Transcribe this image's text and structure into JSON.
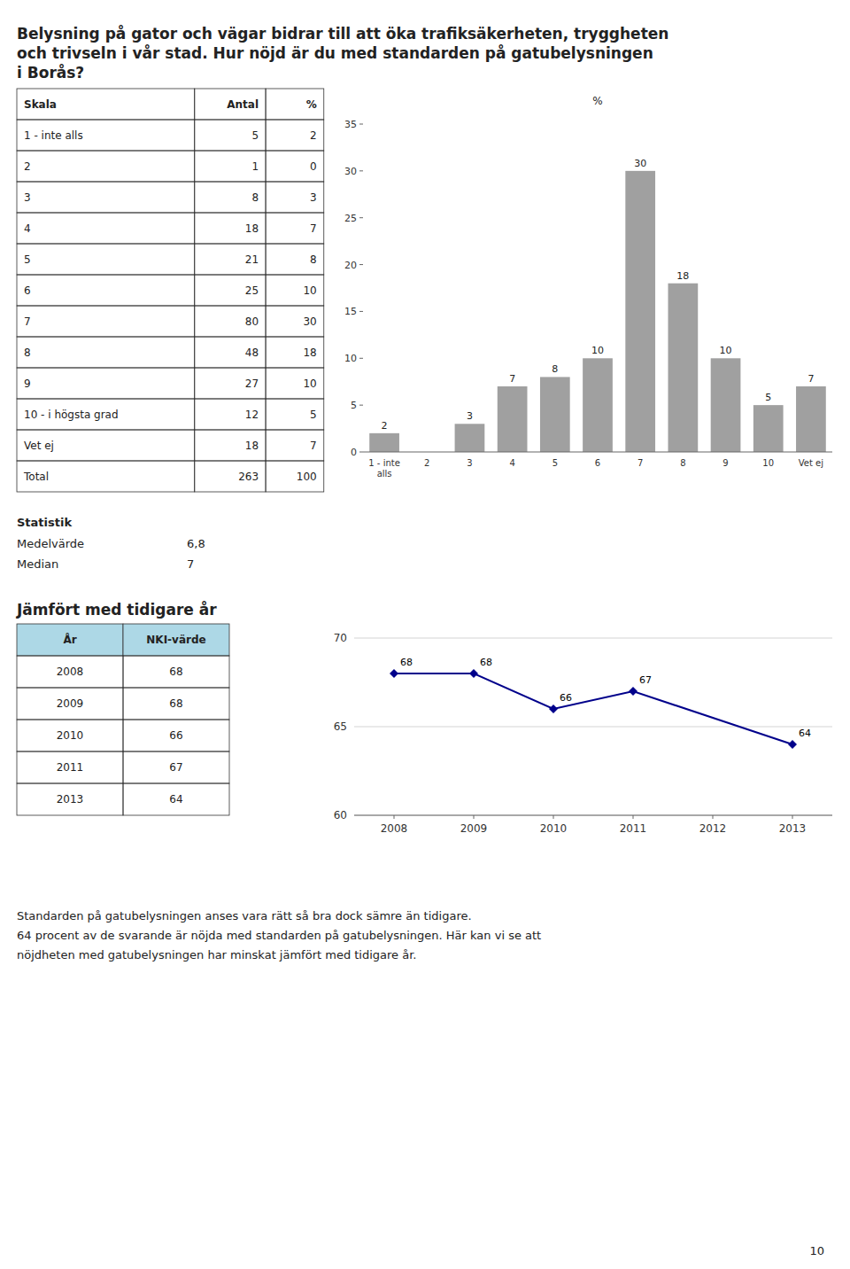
{
  "title": [
    "Belysning på gator och vägar bidrar till att öka trafiksäkerheten, tryggheten",
    "och trivseln i vår stad. Hur nöjd är du med standarden på gatubelysningen",
    "i Borås?"
  ],
  "tables": [
    {
      "type": "table",
      "headers": [
        "Skala",
        "Antal",
        "%"
      ],
      "rows": [
        [
          "1 - inte alls",
          "5",
          "2"
        ],
        [
          "2",
          "1",
          "0"
        ],
        [
          "3",
          "8",
          "3"
        ],
        [
          "4",
          "18",
          "7"
        ],
        [
          "5",
          "21",
          "8"
        ],
        [
          "6",
          "25",
          "10"
        ],
        [
          "7",
          "80",
          "30"
        ],
        [
          "8",
          "48",
          "18"
        ],
        [
          "9",
          "27",
          "10"
        ],
        [
          "10 - i högsta grad",
          "12",
          "5"
        ],
        [
          "Vet ej",
          "18",
          "7"
        ],
        [
          "Total",
          "263",
          "100"
        ]
      ]
    },
    {
      "type": "table",
      "headers": [
        "År",
        "NKI-värde"
      ],
      "rows": [
        [
          "2008",
          "68"
        ],
        [
          "2009",
          "68"
        ],
        [
          "2010",
          "66"
        ],
        [
          "2011",
          "67"
        ],
        [
          "2013",
          "64"
        ]
      ]
    }
  ],
  "statistics": {
    "title": "Statistik",
    "rows": [
      [
        "Medelvärde",
        "6,8"
      ],
      [
        "Median",
        "7"
      ]
    ]
  },
  "section_title": "Jämfört med tidigare år",
  "footer": [
    "Standarden på gatubelysningen anses vara rätt så bra dock sämre än tidigare.",
    " 64 procent av de svarande är nöjda med standarden på gatubelysningen. Här kan vi se att",
    "nöjdheten med gatubelysningen har minskat jämfört med tidigare år."
  ],
  "page_number": "10",
  "chart_data": [
    {
      "type": "bar",
      "categories": [
        "1 - inte\nalls",
        "2",
        "3",
        "4",
        "5",
        "6",
        "7",
        "8",
        "9",
        "10",
        "Vet ej"
      ],
      "values": [
        2,
        0,
        3,
        7,
        8,
        10,
        30,
        18,
        10,
        5,
        7
      ],
      "color": "#a0a0a0",
      "ylabel": "%",
      "ylim": [
        0,
        35
      ],
      "yticks": [
        0,
        5,
        10,
        15,
        20,
        25,
        30,
        35
      ],
      "grid": false,
      "data_labels": true
    },
    {
      "type": "line",
      "x": [
        2008,
        2009,
        2010,
        2011,
        2013
      ],
      "values": [
        68,
        68,
        66,
        67,
        64
      ],
      "color": "#00008B",
      "marker": "diamond",
      "xlim": [
        2007.5,
        2013.5
      ],
      "xticks": [
        2008,
        2009,
        2010,
        2011,
        2012,
        2013
      ],
      "ylim": [
        60,
        70
      ],
      "yticks": [
        60,
        65,
        70
      ],
      "grid": true,
      "data_labels": true
    }
  ]
}
